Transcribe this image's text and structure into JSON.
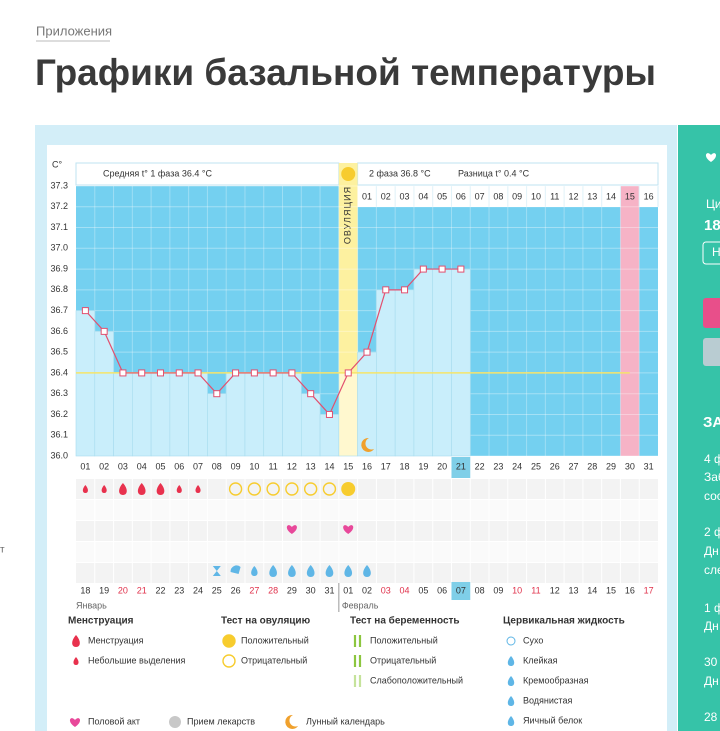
{
  "breadcrumb": "Приложения",
  "title": "Графики базальной температуры",
  "chart_data": {
    "type": "line",
    "y_label": "C°",
    "phase1_label": "Средняя t° 1 фаза 36.4 °C",
    "ovulation_label": "ОВУЛЯЦИЯ",
    "phase2_label": "2 фаза 36.8 °C",
    "difference_label": "Разница t° 0.4 °C",
    "categories": [
      "01",
      "02",
      "03",
      "04",
      "05",
      "06",
      "07",
      "08",
      "09",
      "10",
      "11",
      "12",
      "13",
      "14",
      "15",
      "16",
      "17",
      "18",
      "19",
      "20",
      "21",
      "22",
      "23",
      "24",
      "25",
      "26",
      "27",
      "28",
      "29",
      "30",
      "31"
    ],
    "values": [
      36.7,
      36.6,
      36.4,
      36.4,
      36.4,
      36.4,
      36.4,
      36.3,
      36.4,
      36.4,
      36.4,
      36.4,
      36.3,
      36.2,
      36.4,
      36.5,
      36.8,
      36.8,
      36.9,
      36.9,
      36.9,
      null,
      null,
      null,
      null,
      null,
      null,
      null,
      null,
      null,
      null
    ],
    "color": "#e2506f",
    "coverline": 36.4,
    "ylim": [
      36.0,
      37.3
    ],
    "yticks": [
      {
        "value": 36,
        "label": "36.0"
      },
      36.1,
      36.2,
      36.3,
      36.4,
      36.5,
      36.6,
      36.7,
      36.8,
      36.9,
      {
        "value": 37,
        "label": "37.0"
      },
      37.1,
      37.2,
      37.3
    ],
    "grid": true,
    "phase2_days": [
      "01",
      "02",
      "03",
      "04",
      "05",
      "06",
      "07",
      "08",
      "09",
      "10",
      "11",
      "12",
      "13",
      "14",
      "15",
      "16"
    ],
    "dates": [
      "18",
      "19",
      "20",
      "21",
      "22",
      "23",
      "24",
      "25",
      "26",
      "27",
      "28",
      "29",
      "30",
      "31",
      "01",
      "02",
      "03",
      "04",
      "05",
      "06",
      "07",
      "08",
      "09",
      "10",
      "11",
      "12",
      "13",
      "14",
      "15",
      "16",
      "17"
    ],
    "dates_red": [
      false,
      false,
      true,
      true,
      false,
      false,
      false,
      false,
      false,
      true,
      true,
      false,
      false,
      false,
      false,
      false,
      true,
      true,
      false,
      false,
      false,
      false,
      false,
      true,
      true,
      false,
      false,
      false,
      false,
      false,
      true
    ],
    "months": [
      "Январь",
      "Февраль"
    ]
  },
  "legend": {
    "menstruation": {
      "title": "Менструация",
      "items": [
        "Менструация",
        "Небольшие выделения"
      ]
    },
    "ovulation_test": {
      "title": "Тест на овуляцию",
      "items": [
        "Положительный",
        "Отрицательный"
      ]
    },
    "pregnancy_test": {
      "title": "Тест на беременность",
      "items": [
        "Положительный",
        "Отрицательный",
        "Слабоположительный"
      ]
    },
    "cervical_fluid": {
      "title": "Цервикальная жидкость",
      "items": [
        "Сухо",
        "Клейкая",
        "Кремообразная",
        "Водянистая",
        "Яичный белок"
      ]
    },
    "other": [
      "Половой акт",
      "Прием лекарств",
      "Лунный календарь"
    ]
  },
  "sidebar": [
    "Ци",
    "18",
    "Н",
    "ЗА",
    "4 ф",
    "Заб",
    "сос",
    "2 ф",
    "Дн",
    "сле",
    "1 ф",
    "Дн",
    "30",
    "Дн",
    "28"
  ],
  "left_edge": "т"
}
